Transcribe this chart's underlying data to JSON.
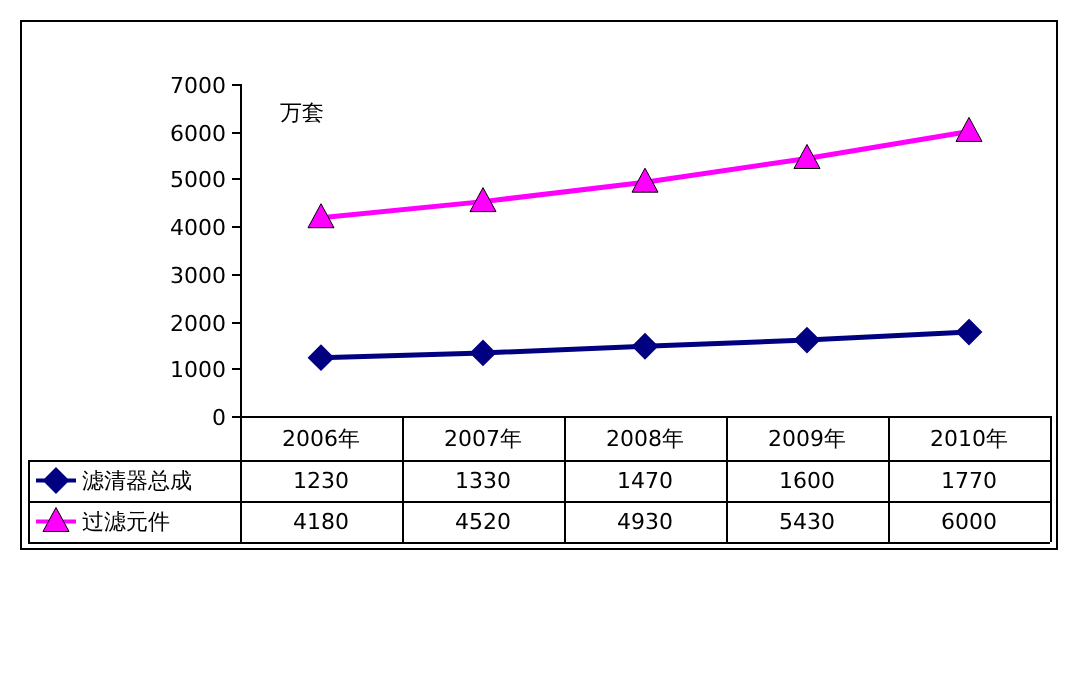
{
  "chart_data": {
    "type": "line",
    "ylabel": "万套",
    "categories": [
      "2006年",
      "2007年",
      "2008年",
      "2009年",
      "2010年"
    ],
    "series": [
      {
        "name": "滤清器总成",
        "color": "#000080",
        "marker": "diamond",
        "values": [
          1230,
          1330,
          1470,
          1600,
          1770
        ]
      },
      {
        "name": "过滤元件",
        "color": "#ff00ff",
        "marker": "triangle",
        "values": [
          4180,
          4520,
          4930,
          5430,
          6000
        ]
      }
    ],
    "ylim": [
      0,
      7000
    ],
    "yticks": [
      0,
      1000,
      2000,
      3000,
      4000,
      5000,
      6000,
      7000
    ],
    "data_labels": true,
    "legend": "bottom left"
  }
}
